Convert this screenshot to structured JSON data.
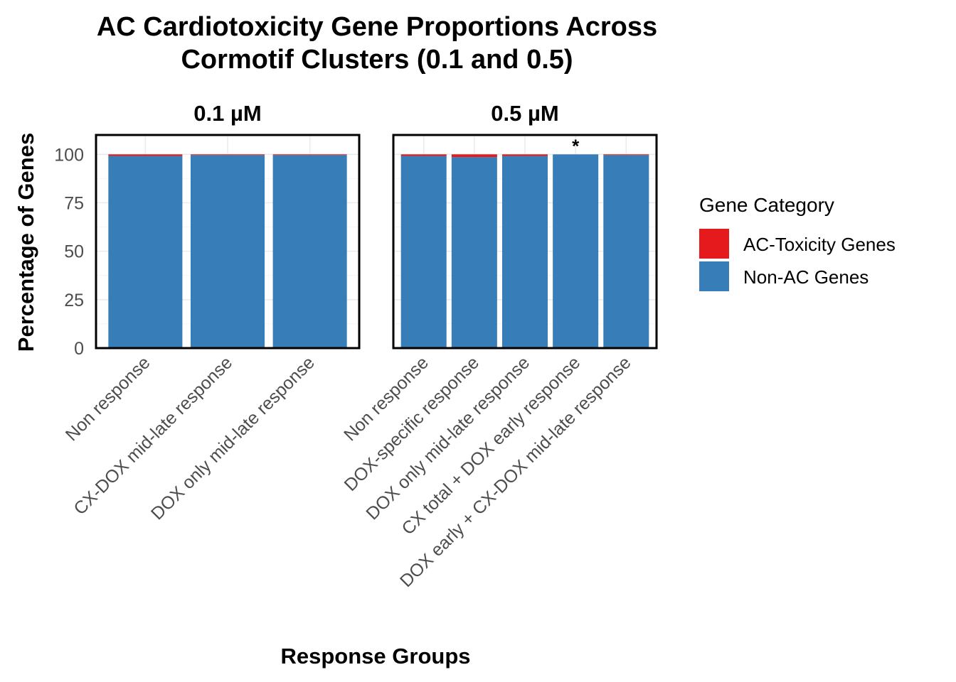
{
  "chart_data": {
    "type": "bar",
    "title_lines": [
      "AC Cardiotoxicity Gene Proportions Across",
      "Cormotif Clusters (0.1 and 0.5)"
    ],
    "xlabel": "Response Groups",
    "ylabel": "Percentage of Genes",
    "ylim": [
      0,
      110
    ],
    "yticks": [
      0,
      25,
      50,
      75,
      100
    ],
    "grid": true,
    "stacked": true,
    "legend": {
      "title": "Gene Category",
      "position": "right",
      "items": [
        {
          "label": "AC-Toxicity Genes",
          "color": "#E41A1C"
        },
        {
          "label": "Non-AC Genes",
          "color": "#377EB8"
        }
      ]
    },
    "facets": [
      {
        "label": "0.1 µM",
        "categories": [
          "Non response",
          "CX-DOX mid-late response",
          "DOX only mid-late response"
        ],
        "series": [
          {
            "name": "Non-AC Genes",
            "values": [
              99.2,
              99.6,
              99.6
            ]
          },
          {
            "name": "AC-Toxicity Genes",
            "values": [
              0.8,
              0.4,
              0.4
            ]
          }
        ],
        "annotations": [
          "",
          "",
          ""
        ]
      },
      {
        "label": "0.5 µM",
        "categories": [
          "Non response",
          "DOX-specific response",
          "DOX only mid-late response",
          "CX total + DOX early response",
          "DOX early + CX-DOX mid-late response"
        ],
        "series": [
          {
            "name": "Non-AC Genes",
            "values": [
              99.2,
              98.6,
              99.2,
              100,
              99.6
            ]
          },
          {
            "name": "AC-Toxicity Genes",
            "values": [
              0.8,
              1.4,
              0.8,
              0,
              0.4
            ]
          }
        ],
        "annotations": [
          "",
          "",
          "",
          "*",
          ""
        ]
      }
    ]
  }
}
